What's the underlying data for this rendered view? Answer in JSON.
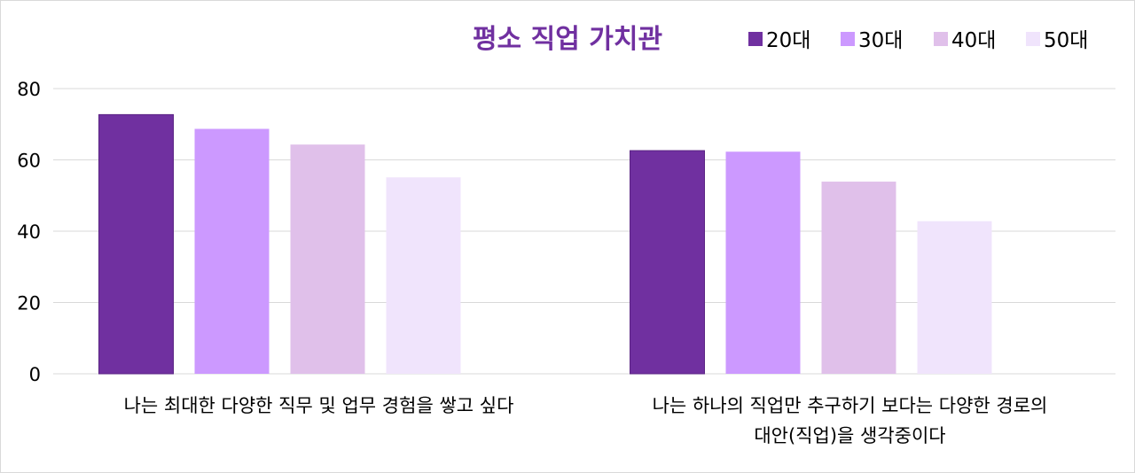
{
  "chart_data": {
    "type": "bar",
    "title": "평소 직업 가치관",
    "categories": [
      "나는 최대한 다양한 직무 및 업무 경험을 쌓고 싶다",
      "나는 하나의 직업만 추구하기 보다는 다양한 경로의 대안(직업)을 생각중이다"
    ],
    "category_lines": [
      [
        "나는 최대한 다양한 직무 및 업무 경험을 쌓고 싶다"
      ],
      [
        "나는 하나의 직업만 추구하기 보다는 다양한 경로의",
        "대안(직업)을 생각중이다"
      ]
    ],
    "series": [
      {
        "name": "20대",
        "color": "#7030a0",
        "values": [
          72.7,
          62.6
        ]
      },
      {
        "name": "30대",
        "color": "#cc99ff",
        "values": [
          68.7,
          62.3
        ]
      },
      {
        "name": "40대",
        "color": "#e0c0ea",
        "values": [
          64.3,
          53.9
        ]
      },
      {
        "name": "50대",
        "color": "#f0e4fc",
        "values": [
          55.1,
          42.8
        ]
      }
    ],
    "ylim": [
      0,
      80
    ],
    "yticks": [
      0,
      20,
      40,
      60,
      80
    ],
    "xlabel": "",
    "ylabel": "",
    "grid": true,
    "legend": "top-right"
  }
}
